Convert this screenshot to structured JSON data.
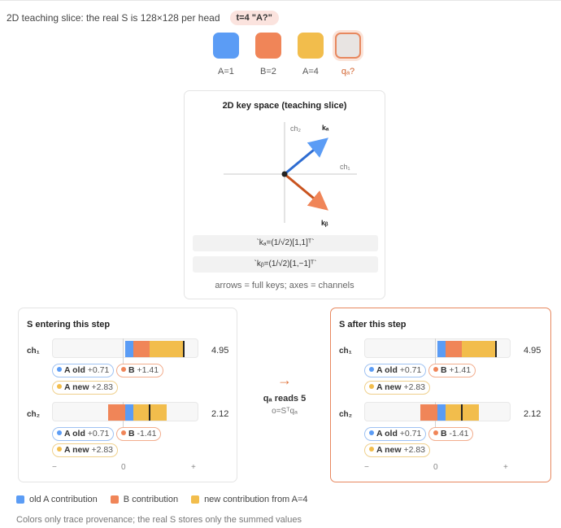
{
  "header": {
    "text": "2D teaching slice: the real S is 128×128 per head",
    "badge": "t=4 \"A?\""
  },
  "colors": {
    "blue": "#5b9cf5",
    "orange": "#f08558",
    "yellow": "#f2bd4c",
    "query_outline": "#e7885f",
    "key_a": "#2e6cd1",
    "key_b": "#c9541f"
  },
  "tokens": [
    {
      "label": "A=1",
      "color": "blue"
    },
    {
      "label": "B=2",
      "color": "orange"
    },
    {
      "label": "A=4",
      "color": "yellow"
    },
    {
      "label": "qₐ?",
      "color": "query"
    }
  ],
  "keyspace": {
    "title": "2D key space (teaching slice)",
    "axis_ch1": "ch₁",
    "axis_ch2": "ch₂",
    "key_a_label": "kₐ",
    "key_b_label": "kᵦ",
    "formula_a": "`kₐ=(1/√2)[1,1]ᵀ`",
    "formula_b": "`kᵦ=(1/√2)[1,−1]ᵀ`",
    "caption": "arrows = full keys; axes = channels",
    "key_a_vector": [
      1,
      1
    ],
    "key_b_vector": [
      1,
      -1
    ]
  },
  "state_before": {
    "title": "S entering this step",
    "channels": [
      {
        "label": "ch₁",
        "value": "4.95",
        "pills": [
          {
            "name": "A old",
            "num": "+0.71",
            "color": "blue"
          },
          {
            "name": "B",
            "num": "+1.41",
            "color": "orange"
          },
          {
            "name": "A new",
            "num": "+2.83",
            "color": "yellow"
          }
        ]
      },
      {
        "label": "ch₂",
        "value": "2.12",
        "pills": [
          {
            "name": "A old",
            "num": "+0.71",
            "color": "blue"
          },
          {
            "name": "B",
            "num": "-1.41",
            "color": "orange"
          },
          {
            "name": "A new",
            "num": "+2.83",
            "color": "yellow"
          }
        ]
      }
    ],
    "axis": {
      "minus": "−",
      "zero": "0",
      "plus": "+"
    }
  },
  "state_after": {
    "title": "S after this step",
    "channels": [
      {
        "label": "ch₁",
        "value": "4.95",
        "pills": [
          {
            "name": "A old",
            "num": "+0.71",
            "color": "blue"
          },
          {
            "name": "B",
            "num": "+1.41",
            "color": "orange"
          },
          {
            "name": "A new",
            "num": "+2.83",
            "color": "yellow"
          }
        ]
      },
      {
        "label": "ch₂",
        "value": "2.12",
        "pills": [
          {
            "name": "A old",
            "num": "+0.71",
            "color": "blue"
          },
          {
            "name": "B",
            "num": "-1.41",
            "color": "orange"
          },
          {
            "name": "A new",
            "num": "+2.83",
            "color": "yellow"
          }
        ]
      }
    ],
    "axis": {
      "minus": "−",
      "zero": "0",
      "plus": "+"
    }
  },
  "middle": {
    "arrow": "→",
    "reads": "qₐ reads 5",
    "formula": "o=Sᵀqₐ"
  },
  "legend": {
    "old_a": "old A contribution",
    "b": "B contribution",
    "new": "new contribution from A=4"
  },
  "note": "Colors only trace provenance; the real S stores only the summed values"
}
